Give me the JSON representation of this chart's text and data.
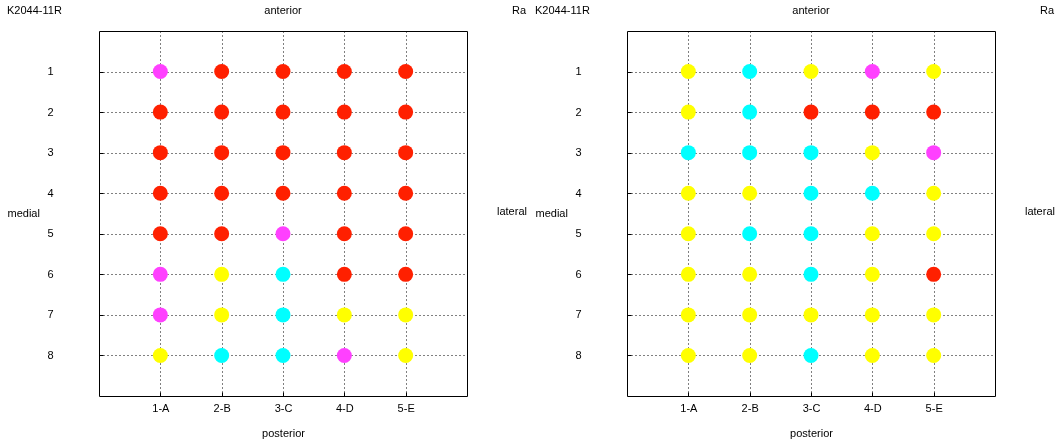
{
  "chart_data": [
    {
      "type": "scatter",
      "title": "anterior",
      "xlabel": "posterior",
      "ylabel": "medial",
      "y2label": "lateral",
      "annotations": [
        "K2044-11R",
        "Ra"
      ],
      "xlim": [
        0,
        6
      ],
      "xticks": [
        {
          "value": 1,
          "label": "1-A"
        },
        {
          "value": 2,
          "label": "2-B"
        },
        {
          "value": 3,
          "label": "3-C"
        },
        {
          "value": 4,
          "label": "4-D"
        },
        {
          "value": 5,
          "label": "5-E"
        }
      ],
      "ylim": [
        9,
        0
      ],
      "yticks": [
        1,
        2,
        3,
        4,
        5,
        6,
        7,
        8
      ],
      "grid": true,
      "marker": "circle",
      "x": [
        1,
        2,
        3,
        4,
        5,
        1,
        2,
        3,
        4,
        5,
        1,
        2,
        3,
        4,
        5,
        1,
        2,
        3,
        4,
        5,
        1,
        2,
        3,
        4,
        5,
        1,
        2,
        3,
        4,
        5,
        1,
        2,
        3,
        4,
        5,
        1,
        2,
        3,
        4,
        5
      ],
      "values": [
        1,
        1,
        1,
        1,
        1,
        2,
        2,
        2,
        2,
        2,
        3,
        3,
        3,
        3,
        3,
        4,
        4,
        4,
        4,
        4,
        5,
        5,
        5,
        5,
        5,
        6,
        6,
        6,
        6,
        6,
        7,
        7,
        7,
        7,
        7,
        8,
        8,
        8,
        8,
        8
      ],
      "colors": [
        "#ff40ff",
        "#ff2000",
        "#ff2000",
        "#ff2000",
        "#ff2000",
        "#ff2000",
        "#ff2000",
        "#ff2000",
        "#ff2000",
        "#ff2000",
        "#ff2000",
        "#ff2000",
        "#ff2000",
        "#ff2000",
        "#ff2000",
        "#ff2000",
        "#ff2000",
        "#ff2000",
        "#ff2000",
        "#ff2000",
        "#ff2000",
        "#ff2000",
        "#ff40ff",
        "#ff2000",
        "#ff2000",
        "#ff40ff",
        "#ffff00",
        "#00ffff",
        "#ff2000",
        "#ff2000",
        "#ff40ff",
        "#ffff00",
        "#00ffff",
        "#ffff00",
        "#ffff00",
        "#ffff00",
        "#00ffff",
        "#00ffff",
        "#ff40ff",
        "#ffff00"
      ]
    },
    {
      "type": "scatter",
      "title": "anterior",
      "xlabel": "posterior",
      "ylabel": "medial",
      "y2label": "lateral",
      "annotations": [
        "K2044-11R",
        "Ra"
      ],
      "xlim": [
        0,
        6
      ],
      "xticks": [
        {
          "value": 1,
          "label": "1-A"
        },
        {
          "value": 2,
          "label": "2-B"
        },
        {
          "value": 3,
          "label": "3-C"
        },
        {
          "value": 4,
          "label": "4-D"
        },
        {
          "value": 5,
          "label": "5-E"
        }
      ],
      "ylim": [
        9,
        0
      ],
      "yticks": [
        1,
        2,
        3,
        4,
        5,
        6,
        7,
        8
      ],
      "grid": true,
      "marker": "circle",
      "x": [
        1,
        2,
        3,
        4,
        5,
        1,
        2,
        3,
        4,
        5,
        1,
        2,
        3,
        4,
        5,
        1,
        2,
        3,
        4,
        5,
        1,
        2,
        3,
        4,
        5,
        1,
        2,
        3,
        4,
        5,
        1,
        2,
        3,
        4,
        5,
        1,
        2,
        3,
        4,
        5
      ],
      "values": [
        1,
        1,
        1,
        1,
        1,
        2,
        2,
        2,
        2,
        2,
        3,
        3,
        3,
        3,
        3,
        4,
        4,
        4,
        4,
        4,
        5,
        5,
        5,
        5,
        5,
        6,
        6,
        6,
        6,
        6,
        7,
        7,
        7,
        7,
        7,
        8,
        8,
        8,
        8,
        8
      ],
      "colors": [
        "#ffff00",
        "#00ffff",
        "#ffff00",
        "#ff40ff",
        "#ffff00",
        "#ffff00",
        "#00ffff",
        "#ff2000",
        "#ff2000",
        "#ff2000",
        "#00ffff",
        "#00ffff",
        "#00ffff",
        "#ffff00",
        "#ff40ff",
        "#ffff00",
        "#ffff00",
        "#00ffff",
        "#00ffff",
        "#ffff00",
        "#ffff00",
        "#00ffff",
        "#00ffff",
        "#ffff00",
        "#ffff00",
        "#ffff00",
        "#ffff00",
        "#00ffff",
        "#ffff00",
        "#ff2000",
        "#ffff00",
        "#ffff00",
        "#ffff00",
        "#ffff00",
        "#ffff00",
        "#ffff00",
        "#ffff00",
        "#00ffff",
        "#ffff00",
        "#ffff00"
      ]
    }
  ]
}
